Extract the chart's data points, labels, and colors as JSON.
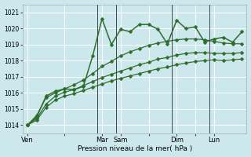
{
  "xlabel": "Pression niveau de la mer( hPa )",
  "bg_color": "#cce8ec",
  "grid_color": "#ffffff",
  "line_color": "#2d6e2d",
  "ylim": [
    1013.5,
    1021.5
  ],
  "yticks": [
    1014,
    1015,
    1016,
    1017,
    1018,
    1019,
    1020,
    1021
  ],
  "day_labels": [
    "Ven",
    "",
    "Mar",
    "Sam",
    "",
    "Dim",
    "",
    "Lun"
  ],
  "day_positions": [
    0,
    4,
    8,
    10,
    13,
    16,
    18,
    20
  ],
  "vline_colors": [
    "#555555",
    "#555555",
    "#555555",
    "#555555"
  ],
  "series1": [
    1014.0,
    1014.5,
    1015.8,
    1016.1,
    1016.25,
    1016.2,
    1016.4,
    1018.3,
    1020.6,
    1019.0,
    1019.95,
    1019.8,
    1020.25,
    1020.25,
    1019.95,
    1019.05,
    1020.5,
    1020.0,
    1020.1,
    1019.15,
    1019.35,
    1019.45,
    1019.15,
    1019.8
  ],
  "series2": [
    1014.0,
    1014.6,
    1015.7,
    1016.0,
    1016.25,
    1016.5,
    1016.8,
    1017.2,
    1017.65,
    1017.95,
    1018.3,
    1018.55,
    1018.75,
    1018.95,
    1019.1,
    1019.2,
    1019.3,
    1019.35,
    1019.35,
    1019.3,
    1019.2,
    1019.1,
    1019.05,
    1019.05
  ],
  "series3": [
    1014.0,
    1014.4,
    1015.3,
    1015.8,
    1016.05,
    1016.2,
    1016.45,
    1016.7,
    1016.95,
    1017.15,
    1017.35,
    1017.55,
    1017.75,
    1017.9,
    1018.1,
    1018.2,
    1018.35,
    1018.45,
    1018.5,
    1018.5,
    1018.45,
    1018.45,
    1018.45,
    1018.5
  ],
  "series4": [
    1014.0,
    1014.3,
    1015.1,
    1015.55,
    1015.8,
    1015.95,
    1016.15,
    1016.35,
    1016.55,
    1016.75,
    1016.9,
    1017.05,
    1017.2,
    1017.35,
    1017.5,
    1017.6,
    1017.75,
    1017.85,
    1017.95,
    1018.0,
    1018.05,
    1018.0,
    1018.05,
    1018.1
  ],
  "vline_positions": [
    7.5,
    9.5,
    15.5,
    19.5
  ],
  "markersize": 2.5,
  "linewidth1": 1.1,
  "linewidth2": 0.9
}
